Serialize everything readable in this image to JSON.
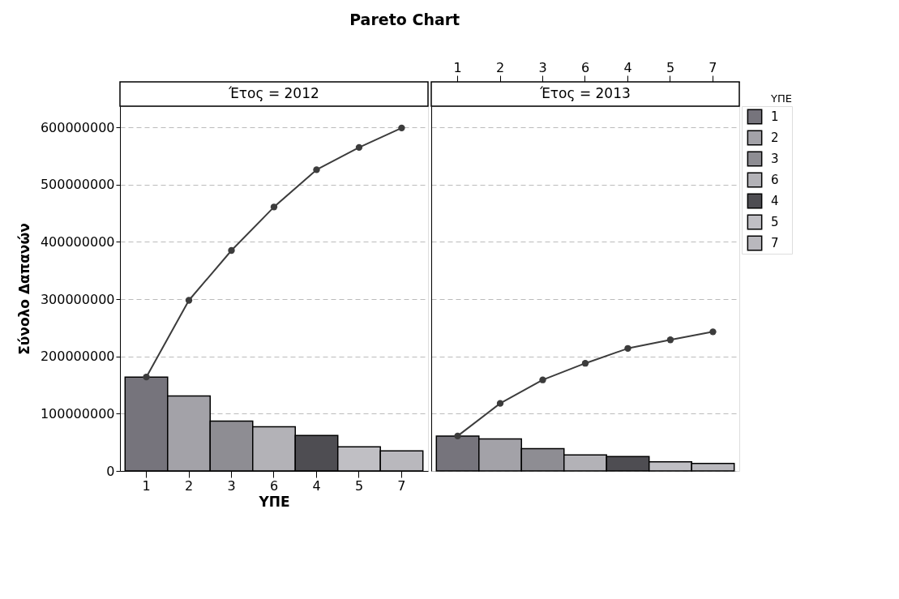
{
  "chart_data": [
    {
      "type": "bar",
      "title": "Pareto Chart",
      "subtitle": "Έτος = 2012",
      "xlabel": "ΥΠΕ",
      "ylabel": "Σύνολο Δαπανών",
      "categories": [
        "1",
        "2",
        "3",
        "6",
        "4",
        "5",
        "7"
      ],
      "series": [
        {
          "colors": [
            "#76747c",
            "#a3a2a8",
            "#8e8d93",
            "#b3b2b7",
            "#4e4d52",
            "#c0bfc4",
            "#b9b8bd"
          ],
          "values": [
            164000000,
            131000000,
            87000000,
            77000000,
            62000000,
            42000000,
            35000000
          ]
        },
        {
          "type": "line",
          "color": "#3c3c3c",
          "marker": "circle",
          "values": [
            164000000,
            298000000,
            385000000,
            461000000,
            526000000,
            565000000,
            599000000
          ]
        }
      ],
      "ylim": [
        0,
        637000000
      ],
      "yticks": [
        0,
        100000000,
        200000000,
        300000000,
        400000000,
        500000000,
        600000000
      ],
      "grid": "y"
    },
    {
      "type": "bar",
      "subtitle": "Έτος = 2013",
      "legend_title": "ΥΠΕ",
      "legend": "right",
      "tick_labels": "x",
      "stacked": true,
      "categories": [
        "1",
        "2",
        "3",
        "6",
        "4",
        "5",
        "7"
      ],
      "series": [
        {
          "name": "1",
          "color": "#76747c",
          "values": [
            61000000,
            null,
            null,
            null,
            null,
            null,
            null
          ]
        },
        {
          "name": "2",
          "color": "#a3a2a8",
          "values": [
            null,
            56000000,
            null,
            null,
            null,
            null,
            null
          ]
        },
        {
          "name": "3",
          "color": "#8e8d93",
          "values": [
            null,
            null,
            39000000,
            null,
            null,
            null,
            null
          ]
        },
        {
          "name": "6",
          "color": "#b3b2b7",
          "values": [
            null,
            null,
            null,
            28000000,
            null,
            null,
            null
          ]
        },
        {
          "name": "4",
          "color": "#4e4d52",
          "values": [
            null,
            null,
            null,
            null,
            25000000,
            null,
            null
          ]
        },
        {
          "name": "5",
          "color": "#c0bfc4",
          "values": [
            null,
            null,
            null,
            null,
            null,
            16000000,
            null
          ]
        },
        {
          "name": "7",
          "color": "#b9b8bd",
          "values": [
            null,
            null,
            null,
            null,
            null,
            null,
            13000000
          ]
        },
        {
          "type": "line",
          "color": "#3c3c3c",
          "marker": "circle",
          "values": [
            61000000,
            118000000,
            159000000,
            188000000,
            214000000,
            229000000,
            243000000
          ]
        }
      ],
      "ylim": [
        0,
        637000000
      ],
      "yticks": [
        0,
        100000000,
        200000000,
        300000000,
        400000000,
        500000000,
        600000000
      ],
      "grid": "y"
    }
  ]
}
